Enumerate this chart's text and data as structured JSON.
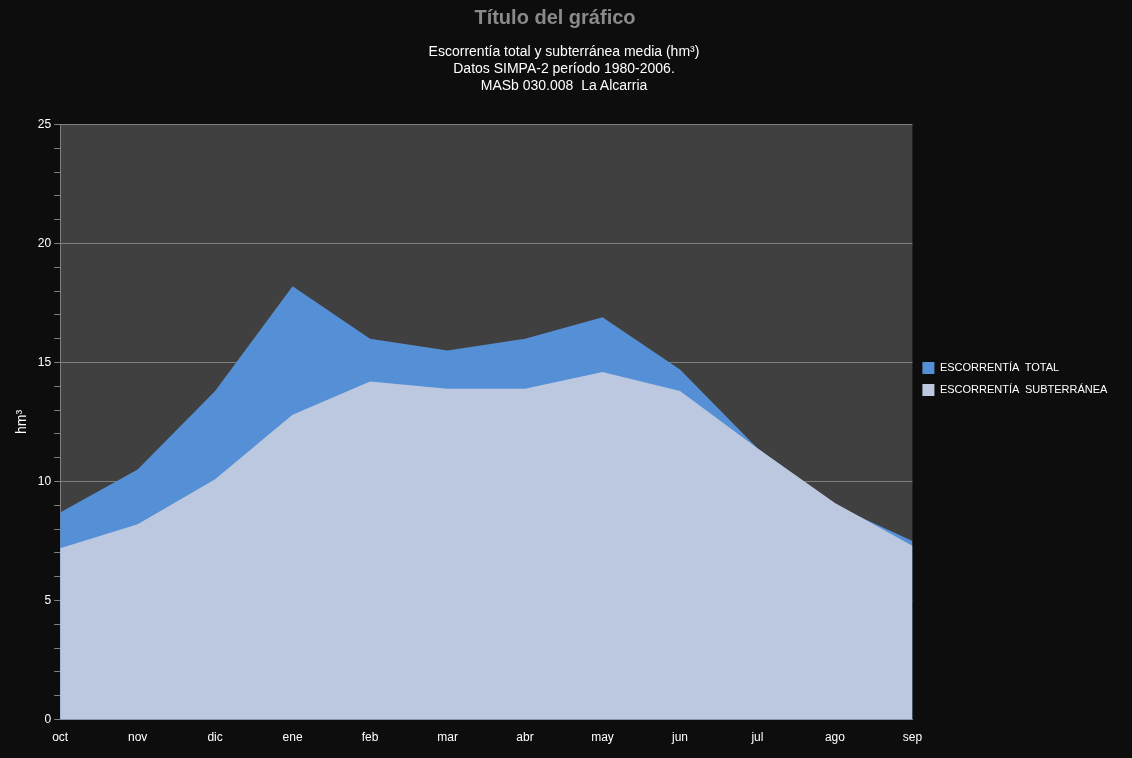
{
  "chart_data": {
    "type": "area",
    "title": "Escorrentía total y subterránea media (hm³)",
    "subtitle": "Datos SIMPA-2 período 1980-2006.\nMASb 030.008  La Alcarria",
    "ylabel": "hm³",
    "annotations": [
      "Título del gráfico"
    ],
    "categories": [
      "oct",
      "nov",
      "dic",
      "ene",
      "feb",
      "mar",
      "abr",
      "may",
      "jun",
      "jul",
      "ago",
      "sep"
    ],
    "series": [
      {
        "name": "ESCORRENTÍA  TOTAL",
        "color": "#558fd5",
        "values": [
          8.7,
          10.5,
          13.8,
          18.2,
          16.0,
          15.5,
          16.0,
          16.9,
          14.7,
          11.4,
          9.0,
          7.5
        ]
      },
      {
        "name": "ESCORRENTÍA  SUBTERRÁNEA",
        "color": "#bcc8e0",
        "values": [
          7.2,
          8.2,
          10.1,
          12.8,
          14.2,
          13.9,
          13.9,
          14.6,
          13.8,
          11.4,
          9.1,
          7.3
        ]
      }
    ],
    "ylim": [
      0,
      25
    ],
    "yticks": [
      0,
      {
        "value": 1,
        "label": null
      },
      {
        "value": 2,
        "label": null
      },
      {
        "value": 3,
        "label": null
      },
      {
        "value": 4,
        "label": null
      },
      5,
      {
        "value": 6,
        "label": null
      },
      {
        "value": 7,
        "label": null
      },
      {
        "value": 8,
        "label": null
      },
      {
        "value": 9,
        "label": null
      },
      10,
      {
        "value": 11,
        "label": null
      },
      {
        "value": 12,
        "label": null
      },
      {
        "value": 13,
        "label": null
      },
      {
        "value": 14,
        "label": null
      },
      15,
      {
        "value": 16,
        "label": null
      },
      {
        "value": 17,
        "label": null
      },
      {
        "value": 18,
        "label": null
      },
      {
        "value": 19,
        "label": null
      },
      20,
      {
        "value": 21,
        "label": null
      },
      {
        "value": 22,
        "label": null
      },
      {
        "value": 23,
        "label": null
      },
      {
        "value": 24,
        "label": null
      },
      25
    ],
    "grid": "y",
    "legend": "right"
  }
}
